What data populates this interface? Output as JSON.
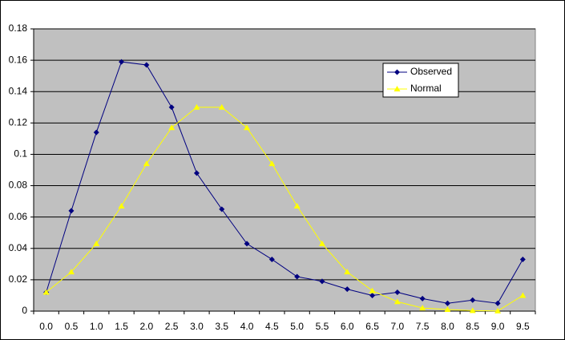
{
  "chart_data": {
    "type": "line",
    "categories": [
      "0.0",
      "0.5",
      "1.0",
      "1.5",
      "2.0",
      "2.5",
      "3.0",
      "3.5",
      "4.0",
      "4.5",
      "5.0",
      "5.5",
      "6.0",
      "6.5",
      "7.0",
      "7.5",
      "8.0",
      "8.5",
      "9.0",
      "9.5"
    ],
    "series": [
      {
        "name": "Observed",
        "color": "#000080",
        "marker": "diamond",
        "values": [
          0.012,
          0.064,
          0.114,
          0.159,
          0.157,
          0.13,
          0.088,
          0.065,
          0.043,
          0.033,
          0.022,
          0.019,
          0.014,
          0.01,
          0.012,
          0.008,
          0.005,
          0.007,
          0.005,
          0.033
        ]
      },
      {
        "name": "Normal",
        "color": "#ffff00",
        "marker": "triangle",
        "values": [
          0.012,
          0.025,
          0.043,
          0.067,
          0.094,
          0.117,
          0.13,
          0.13,
          0.117,
          0.094,
          0.067,
          0.043,
          0.025,
          0.013,
          0.006,
          0.002,
          0.001,
          0.0003,
          0.0001,
          0.01
        ]
      }
    ],
    "ylim": [
      0,
      0.18
    ],
    "yticks": [
      0,
      0.02,
      0.04,
      0.06,
      0.08,
      0.1,
      0.12,
      0.14,
      0.16,
      0.18
    ],
    "grid": true,
    "legend": "upper-right"
  }
}
